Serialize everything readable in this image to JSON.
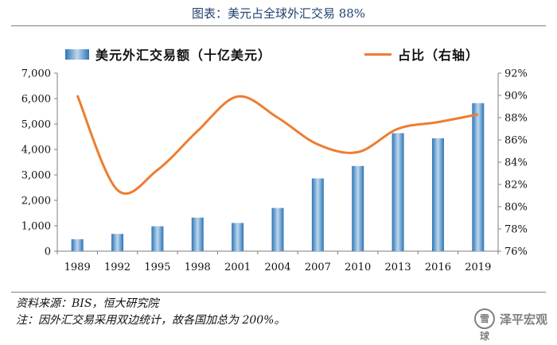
{
  "figure": {
    "title": "图表：美元占全球外汇交易 88%",
    "source": "资料来源：BIS，恒大研究院",
    "note": "注：因外汇交易采用双边统计，故各国加总为 200%。",
    "watermark": "泽平宏观",
    "watermark_logo": "雪球"
  },
  "chart_data": {
    "type": "bar",
    "categories": [
      "1989",
      "1992",
      "1995",
      "1998",
      "2001",
      "2004",
      "2007",
      "2010",
      "2013",
      "2016",
      "2019"
    ],
    "series": [
      {
        "name": "美元外汇交易额（十亿美元）",
        "type": "bar",
        "axis": "left",
        "values": [
          470,
          680,
          980,
          1320,
          1110,
          1700,
          2860,
          3350,
          4640,
          4440,
          5820
        ]
      },
      {
        "name": "占比（右轴）",
        "type": "line",
        "axis": "right",
        "values": [
          90.0,
          81.5,
          83.3,
          86.8,
          89.9,
          88.0,
          85.6,
          84.9,
          87.0,
          87.6,
          88.3
        ]
      }
    ],
    "left_axis": {
      "min": 0,
      "max": 7000,
      "ticks": [
        "0",
        "1,000",
        "2,000",
        "3,000",
        "4,000",
        "5,000",
        "6,000",
        "7,000"
      ]
    },
    "right_axis": {
      "min": 76,
      "max": 92,
      "ticks": [
        "76%",
        "78%",
        "80%",
        "82%",
        "84%",
        "86%",
        "88%",
        "90%",
        "92%"
      ]
    },
    "legend": {
      "position": "top",
      "bar_label": "美元外汇交易额（十亿美元）",
      "line_label": "占比（右轴）"
    },
    "colors": {
      "bar": "#2e75b6",
      "bar_light": "#bdd7ee",
      "line": "#ed7d31",
      "axis": "#7f7f7f"
    }
  }
}
